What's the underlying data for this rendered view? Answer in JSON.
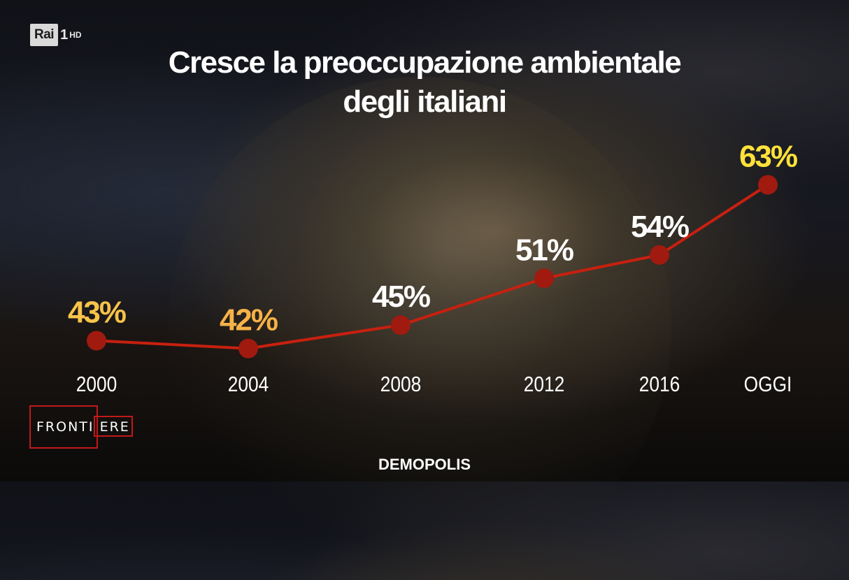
{
  "broadcaster": {
    "logo_text": "Rai",
    "channel": "1",
    "hd": "HD"
  },
  "title_line1": "Cresce la preoccupazione ambientale",
  "title_line2": "degli italiani",
  "chart_data": {
    "type": "line",
    "categories": [
      "2000",
      "2004",
      "2008",
      "2012",
      "2016",
      "OGGI"
    ],
    "values": [
      43,
      42,
      45,
      51,
      54,
      63
    ],
    "labels": [
      "43%",
      "42%",
      "45%",
      "51%",
      "54%",
      "63%"
    ],
    "label_colors": [
      "#f7c34a",
      "#f7b247",
      "#ffffff",
      "#ffffff",
      "#ffffff",
      "#ffe23a"
    ],
    "ylim": [
      40,
      66
    ],
    "grid": false,
    "line_color": "#c8200f",
    "marker_color": "#a01a10"
  },
  "show_logo": {
    "name": "FRONTIERE",
    "part1": "FRONTI",
    "part2": "ERE"
  },
  "source": "DEMOPOLIS"
}
